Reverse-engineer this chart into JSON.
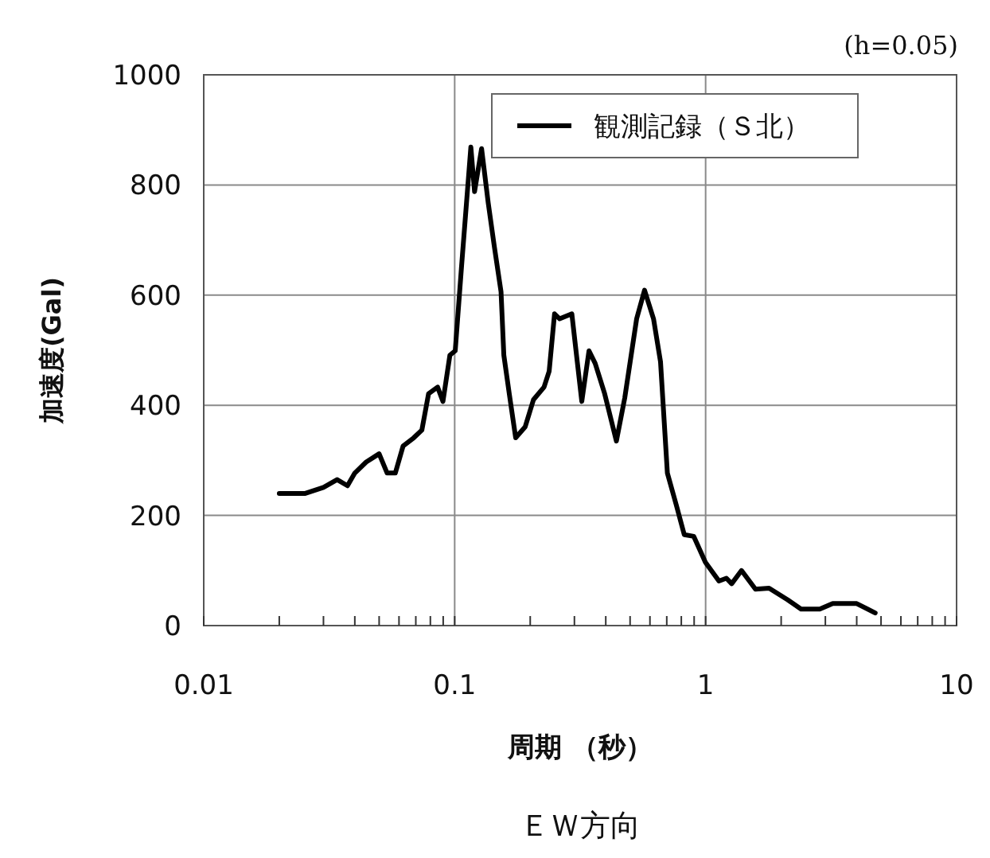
{
  "chart_data": {
    "type": "line",
    "xlabel": "周期 （秒）",
    "ylabel": "加速度(Gal)",
    "annotations": [
      "(h=0.05)",
      "ＥＷ方向"
    ],
    "log": "x",
    "grid": true,
    "legend": "top",
    "marker": "none",
    "line_style": "solid",
    "xlim": [
      0.01,
      10
    ],
    "ylim": [
      0,
      1000
    ],
    "yticks": [
      0,
      200,
      400,
      600,
      800,
      1000
    ],
    "xticks": [
      0.01,
      {
        "value": 0.02,
        "label": null
      },
      {
        "value": 0.03,
        "label": null
      },
      {
        "value": 0.04,
        "label": null
      },
      {
        "value": 0.05,
        "label": null
      },
      {
        "value": 0.06,
        "label": null
      },
      {
        "value": 0.07,
        "label": null
      },
      {
        "value": 0.08,
        "label": null
      },
      {
        "value": 0.09,
        "label": null
      },
      0.1,
      {
        "value": 0.2,
        "label": null
      },
      {
        "value": 0.3,
        "label": null
      },
      {
        "value": 0.4,
        "label": null
      },
      {
        "value": 0.5,
        "label": null
      },
      {
        "value": 0.6,
        "label": null
      },
      {
        "value": 0.7,
        "label": null
      },
      {
        "value": 0.8,
        "label": null
      },
      {
        "value": 0.9,
        "label": null
      },
      1,
      {
        "value": 2,
        "label": null
      },
      {
        "value": 3,
        "label": null
      },
      {
        "value": 4,
        "label": null
      },
      {
        "value": 5,
        "label": null
      },
      {
        "value": 6,
        "label": null
      },
      {
        "value": 7,
        "label": null
      },
      {
        "value": 8,
        "label": null
      },
      {
        "value": 9,
        "label": null
      },
      10
    ],
    "series": [
      {
        "name": "観測記録（Ｓ北）",
        "color": "#000000",
        "x": [
          0.02,
          0.0254,
          0.03,
          0.034,
          0.0374,
          0.04,
          0.0444,
          0.05,
          0.0538,
          0.058,
          0.0623,
          0.0687,
          0.074,
          0.0787,
          0.0855,
          0.0898,
          0.0957,
          0.1005,
          0.1065,
          0.116,
          0.12,
          0.128,
          0.136,
          0.144,
          0.153,
          0.157,
          0.165,
          0.175,
          0.191,
          0.206,
          0.227,
          0.238,
          0.25,
          0.262,
          0.293,
          0.308,
          0.321,
          0.343,
          0.363,
          0.396,
          0.441,
          0.476,
          0.531,
          0.571,
          0.62,
          0.661,
          0.704,
          0.764,
          0.822,
          0.897,
          0.998,
          1.13,
          1.21,
          1.27,
          1.39,
          1.58,
          1.79,
          2.12,
          2.4,
          2.85,
          3.21,
          4.0,
          4.74
        ],
        "values": [
          240,
          240,
          251,
          265,
          254,
          277,
          297,
          312,
          277,
          277,
          326,
          341,
          355,
          421,
          433,
          407,
          491,
          499,
          652,
          869,
          788,
          866,
          768,
          687,
          606,
          491,
          421,
          341,
          361,
          410,
          433,
          462,
          566,
          557,
          566,
          479,
          407,
          499,
          476,
          421,
          335,
          413,
          557,
          609,
          557,
          479,
          277,
          219,
          165,
          162,
          115,
          81,
          86,
          76,
          100,
          66,
          68,
          47,
          30,
          30,
          40,
          40,
          23
        ]
      }
    ]
  }
}
